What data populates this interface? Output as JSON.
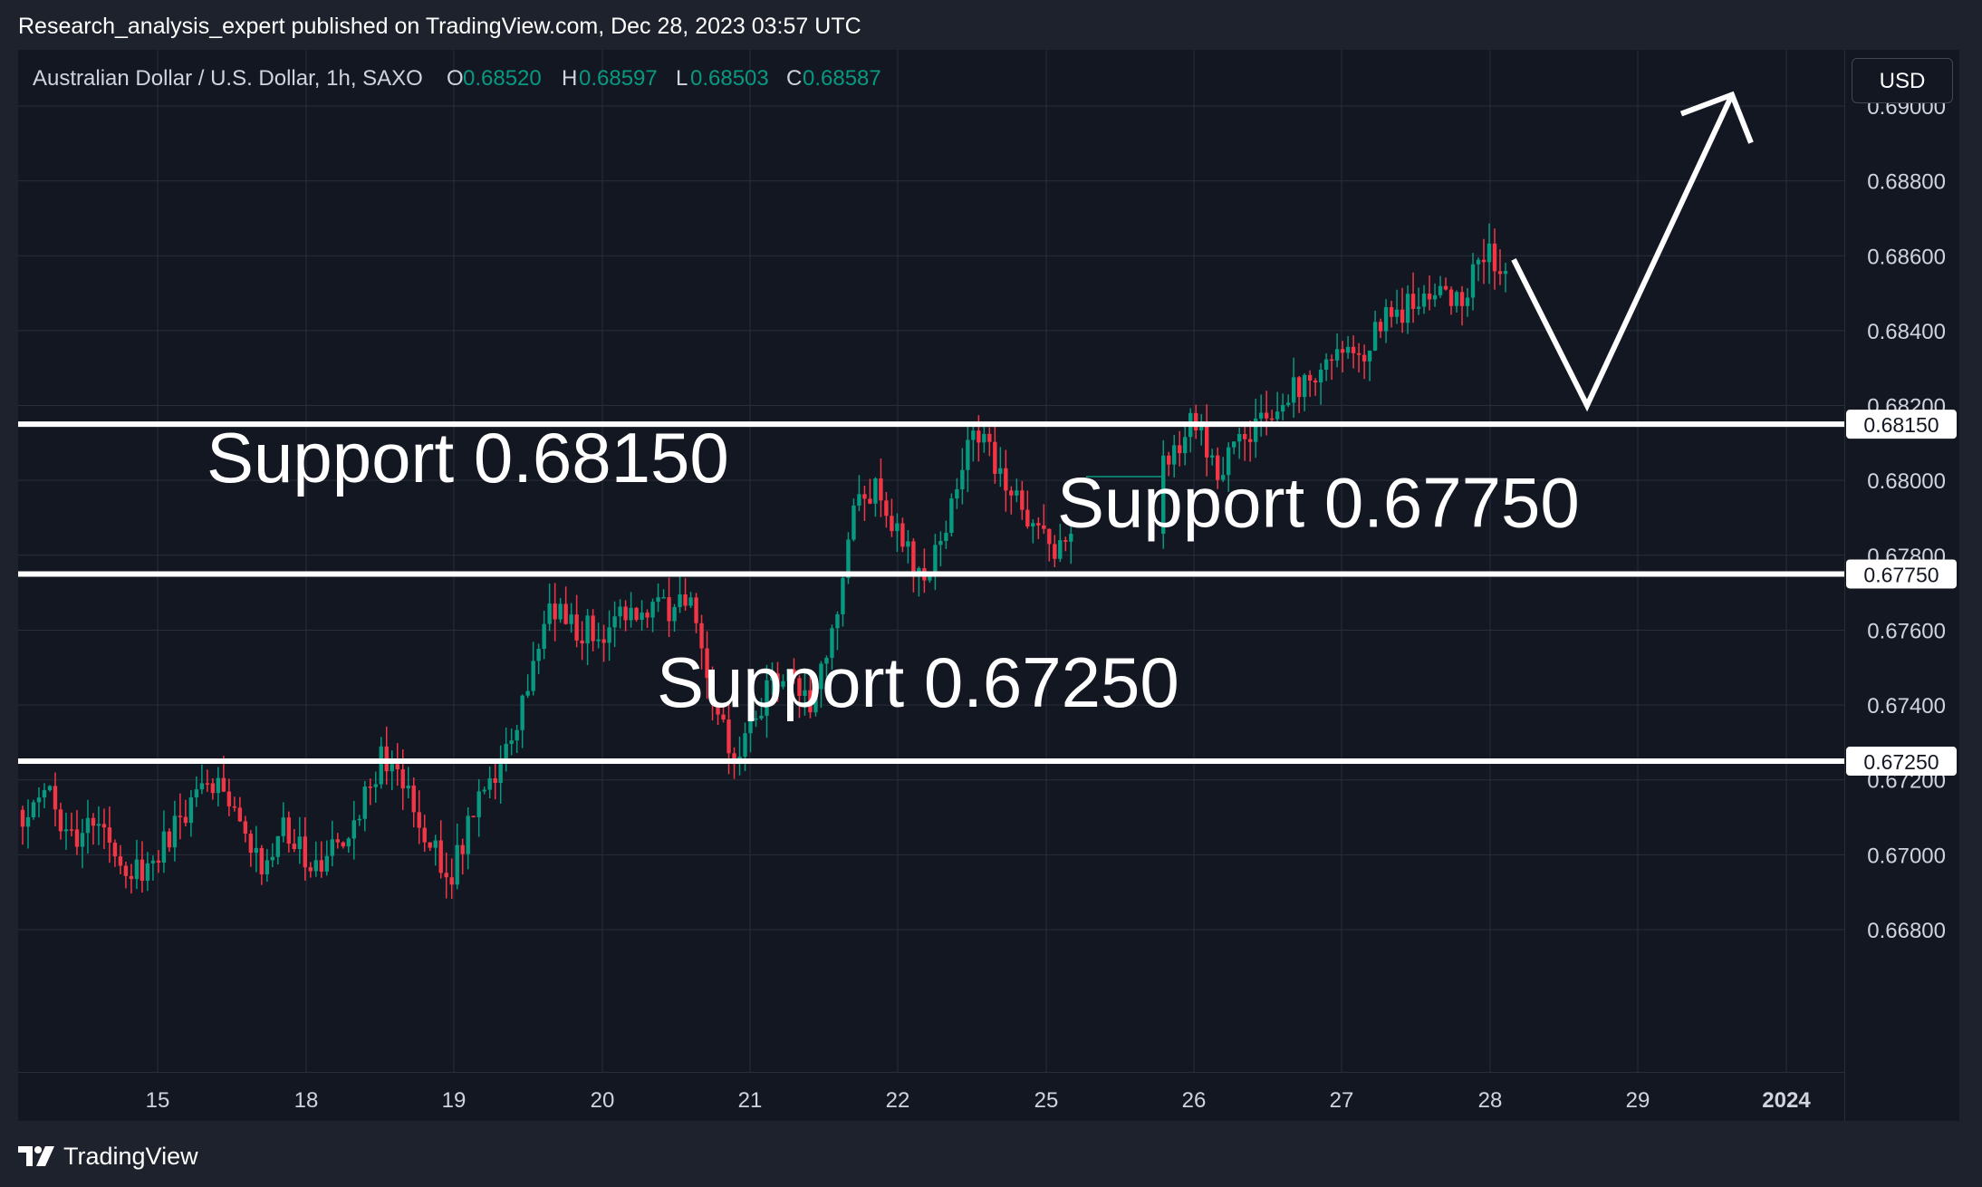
{
  "publisher_line": "Research_analysis_expert published on TradingView.com, Dec 28, 2023 03:57 UTC",
  "legend": {
    "symbol": "Australian Dollar / U.S. Dollar, 1h, SAXO",
    "open_label": "O",
    "open": "0.68520",
    "high_label": "H",
    "high": "0.68597",
    "low_label": "L",
    "low": "0.68503",
    "close_label": "C",
    "close": "0.68587"
  },
  "currency_button": "USD",
  "footer_brand": "TradingView",
  "colors": {
    "background": "#131722",
    "frame": "#1e222d",
    "grid": "#2a2e39",
    "up": "#089981",
    "down": "#f23645",
    "text": "#d1d4dc",
    "annotation": "#ffffff"
  },
  "chart_data": {
    "type": "candlestick",
    "title": "Australian Dollar / U.S. Dollar, 1h, SAXO",
    "y_axis_ticks": [
      "0.69000",
      "0.68800",
      "0.68600",
      "0.68400",
      "0.68200",
      "0.68000",
      "0.67800",
      "0.67600",
      "0.67400",
      "0.67200",
      "0.67000",
      "0.66800"
    ],
    "x_axis_ticks": [
      "15",
      "18",
      "19",
      "20",
      "21",
      "22",
      "25",
      "26",
      "27",
      "28",
      "29",
      "2024"
    ],
    "ylim": [
      0.6642,
      0.6915
    ],
    "grid": true,
    "support_levels": [
      {
        "price": 0.6815,
        "label": "Support 0.68150",
        "price_label": "0.68150"
      },
      {
        "price": 0.6775,
        "label": "Support 0.67750",
        "price_label": "0.67750"
      },
      {
        "price": 0.6725,
        "label": "Support 0.67250",
        "price_label": "0.67250"
      }
    ],
    "price_path": [
      [
        "15",
        0.6712
      ],
      [
        "15",
        0.6718
      ],
      [
        "15",
        0.6703
      ],
      [
        "15",
        0.671
      ],
      [
        "15",
        0.67
      ],
      [
        "15",
        0.6694
      ],
      [
        "15",
        0.6704
      ],
      [
        "18",
        0.6714
      ],
      [
        "18",
        0.672
      ],
      [
        "18",
        0.6707
      ],
      [
        "18",
        0.6696
      ],
      [
        "18",
        0.6708
      ],
      [
        "18",
        0.6698
      ],
      [
        "18",
        0.67
      ],
      [
        "19",
        0.6712
      ],
      [
        "19",
        0.6725
      ],
      [
        "19",
        0.672
      ],
      [
        "19",
        0.6703
      ],
      [
        "19",
        0.6696
      ],
      [
        "19",
        0.6712
      ],
      [
        "19",
        0.6722
      ],
      [
        "20",
        0.674
      ],
      [
        "20",
        0.6768
      ],
      [
        "20",
        0.6762
      ],
      [
        "20",
        0.6758
      ],
      [
        "20",
        0.6768
      ],
      [
        "20",
        0.6763
      ],
      [
        "20",
        0.6766
      ],
      [
        "21",
        0.6768
      ],
      [
        "21",
        0.6738
      ],
      [
        "21",
        0.6725
      ],
      [
        "21",
        0.6742
      ],
      [
        "21",
        0.6748
      ],
      [
        "21",
        0.6742
      ],
      [
        "21",
        0.6762
      ],
      [
        "22",
        0.68
      ],
      [
        "22",
        0.6795
      ],
      [
        "22",
        0.678
      ],
      [
        "22",
        0.6776
      ],
      [
        "22",
        0.6798
      ],
      [
        "22",
        0.6815
      ],
      [
        "22",
        0.68
      ],
      [
        "25",
        0.679
      ],
      [
        "25",
        0.678
      ],
      [
        "25",
        0.6792
      ],
      [
        "25",
        0.6803
      ],
      [
        "25",
        0.6803
      ],
      [
        "25",
        0.6794
      ],
      [
        "26",
        0.6808
      ],
      [
        "26",
        0.6815
      ],
      [
        "26",
        0.68
      ],
      [
        "26",
        0.6812
      ],
      [
        "26",
        0.6818
      ],
      [
        "26",
        0.6822
      ],
      [
        "27",
        0.683
      ],
      [
        "27",
        0.6836
      ],
      [
        "27",
        0.6834
      ],
      [
        "27",
        0.6842
      ],
      [
        "27",
        0.6846
      ],
      [
        "27",
        0.685
      ],
      [
        "28",
        0.6848
      ],
      [
        "28",
        0.686
      ],
      [
        "28",
        0.6859
      ]
    ],
    "projection": [
      [
        "28",
        0.6859
      ],
      [
        "29",
        0.682
      ],
      [
        "2024",
        0.6903
      ]
    ]
  }
}
